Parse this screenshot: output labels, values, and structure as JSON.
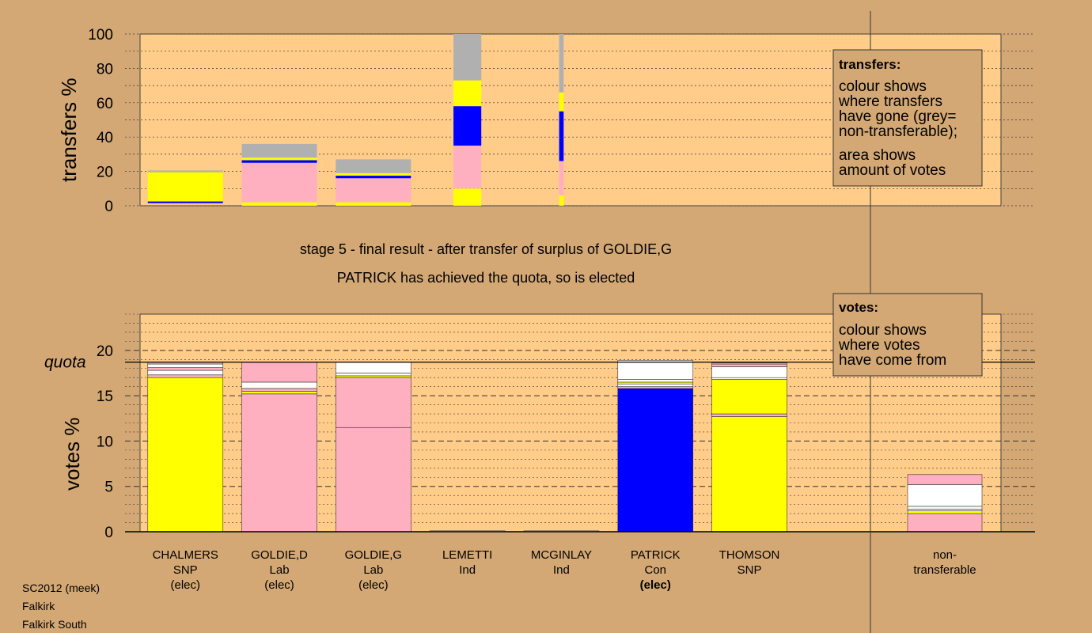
{
  "colors": {
    "background": "#D4A874",
    "panel": "#FFCC8A",
    "SNP": "#FFFF00",
    "Lab": "#FFB0C0",
    "Con": "#0000FF",
    "Ind": "#FFFFFF",
    "other": "#FFFFFF",
    "nontransferable": "#B0B0B0"
  },
  "captions": {
    "line1": "stage 5 - final result - after transfer of surplus of GOLDIE,G",
    "line2": "PATRICK has achieved the quota, so is elected"
  },
  "quota_label": "quota",
  "legend_transfers": {
    "head": "transfers:",
    "lines": [
      "colour shows",
      "where transfers",
      "have gone (grey=",
      "non-transferable);",
      "area shows",
      "amount of votes"
    ]
  },
  "legend_votes": {
    "head": "votes:",
    "lines": [
      "colour shows",
      "where votes",
      "have come from"
    ]
  },
  "footer": [
    "SC2012 (meek)",
    "Falkirk",
    "Falkirk South"
  ],
  "chart_data": [
    {
      "type": "bar",
      "name": "transfers",
      "ylabel": "transfers %",
      "ylim": [
        0,
        100
      ],
      "yticks": [
        0,
        20,
        40,
        60,
        80,
        100
      ],
      "grid": true,
      "bars": [
        {
          "width_rel": 1.0,
          "segments": [
            {
              "party": "Con",
              "from": 1.5,
              "to": 2.5
            },
            {
              "party": "SNP",
              "from": 2.5,
              "to": 19.5
            },
            {
              "party": "nontransferable",
              "from": 19.5,
              "to": 20.5
            }
          ]
        },
        {
          "width_rel": 1.0,
          "segments": [
            {
              "party": "SNP",
              "from": 0,
              "to": 2
            },
            {
              "party": "Lab",
              "from": 2,
              "to": 25
            },
            {
              "party": "Con",
              "from": 25,
              "to": 26.5
            },
            {
              "party": "SNP",
              "from": 26.5,
              "to": 28
            },
            {
              "party": "nontransferable",
              "from": 28,
              "to": 36
            }
          ]
        },
        {
          "width_rel": 1.0,
          "segments": [
            {
              "party": "SNP",
              "from": 0,
              "to": 2
            },
            {
              "party": "Lab",
              "from": 2,
              "to": 16
            },
            {
              "party": "Con",
              "from": 16,
              "to": 17.5
            },
            {
              "party": "SNP",
              "from": 17.5,
              "to": 19
            },
            {
              "party": "nontransferable",
              "from": 19,
              "to": 27
            }
          ]
        },
        {
          "width_rel": 0.37,
          "segments": [
            {
              "party": "SNP",
              "from": 0,
              "to": 10
            },
            {
              "party": "Lab",
              "from": 10,
              "to": 35
            },
            {
              "party": "Con",
              "from": 35,
              "to": 58
            },
            {
              "party": "SNP",
              "from": 58,
              "to": 73
            },
            {
              "party": "nontransferable",
              "from": 73,
              "to": 100
            }
          ]
        },
        {
          "width_rel": 0.06,
          "segments": [
            {
              "party": "SNP",
              "from": 0,
              "to": 6
            },
            {
              "party": "Lab",
              "from": 6,
              "to": 26
            },
            {
              "party": "Con",
              "from": 26,
              "to": 55
            },
            {
              "party": "SNP",
              "from": 55,
              "to": 66
            },
            {
              "party": "nontransferable",
              "from": 66,
              "to": 100
            }
          ]
        }
      ]
    },
    {
      "type": "bar",
      "name": "votes",
      "ylabel": "votes %",
      "ylim": [
        0,
        24
      ],
      "yticks": [
        0,
        5,
        10,
        15,
        20
      ],
      "quota": 18.7,
      "grid": true,
      "categories": [
        {
          "name": "CHALMERS",
          "party": "SNP",
          "status": "(elec)",
          "bold_status": false
        },
        {
          "name": "GOLDIE,D",
          "party": "Lab",
          "status": "(elec)",
          "bold_status": false
        },
        {
          "name": "GOLDIE,G",
          "party": "Lab",
          "status": "(elec)",
          "bold_status": false
        },
        {
          "name": "LEMETTI",
          "party": "Ind",
          "status": "",
          "bold_status": false
        },
        {
          "name": "MCGINLAY",
          "party": "Ind",
          "status": "",
          "bold_status": false
        },
        {
          "name": "PATRICK",
          "party": "Con",
          "status": "(elec)",
          "bold_status": true
        },
        {
          "name": "THOMSON",
          "party": "SNP",
          "status": "",
          "bold_status": false
        }
      ],
      "nontransferable_label": [
        "non-",
        "transferable"
      ],
      "bars": [
        {
          "segments": [
            {
              "party": "SNP",
              "from": 0,
              "to": 17.0
            },
            {
              "party": "Lab",
              "from": 17.0,
              "to": 17.3
            },
            {
              "party": "other",
              "from": 17.3,
              "to": 17.8
            },
            {
              "party": "Lab",
              "from": 17.8,
              "to": 18.1
            },
            {
              "party": "other",
              "from": 18.1,
              "to": 18.5
            },
            {
              "party": "Lab",
              "from": 18.5,
              "to": 18.7
            }
          ]
        },
        {
          "segments": [
            {
              "party": "Lab",
              "from": 0,
              "to": 15.2
            },
            {
              "party": "SNP",
              "from": 15.2,
              "to": 15.5
            },
            {
              "party": "Lab",
              "from": 15.5,
              "to": 15.8
            },
            {
              "party": "other",
              "from": 15.8,
              "to": 16.5
            },
            {
              "party": "Lab",
              "from": 16.5,
              "to": 18.7
            }
          ]
        },
        {
          "segments": [
            {
              "party": "Lab",
              "from": 0,
              "to": 11.5
            },
            {
              "party": "Lab",
              "from": 11.5,
              "to": 17.0
            },
            {
              "party": "SNP",
              "from": 17.0,
              "to": 17.2
            },
            {
              "party": "other",
              "from": 17.2,
              "to": 17.5
            },
            {
              "party": "other",
              "from": 17.5,
              "to": 18.7
            }
          ]
        },
        {
          "segments": [
            {
              "party": "Ind",
              "from": 0,
              "to": 0.1
            }
          ]
        },
        {
          "segments": [
            {
              "party": "Ind",
              "from": 0,
              "to": 0.1
            }
          ]
        },
        {
          "segments": [
            {
              "party": "Con",
              "from": 0,
              "to": 15.8
            },
            {
              "party": "Lab",
              "from": 15.8,
              "to": 16.0
            },
            {
              "party": "other",
              "from": 16.0,
              "to": 16.3
            },
            {
              "party": "SNP",
              "from": 16.3,
              "to": 16.5
            },
            {
              "party": "other",
              "from": 16.5,
              "to": 16.8
            },
            {
              "party": "other",
              "from": 16.8,
              "to": 18.9
            }
          ]
        },
        {
          "segments": [
            {
              "party": "SNP",
              "from": 0,
              "to": 12.7
            },
            {
              "party": "Lab",
              "from": 12.7,
              "to": 13.0
            },
            {
              "party": "SNP",
              "from": 13.0,
              "to": 16.8
            },
            {
              "party": "other",
              "from": 16.8,
              "to": 17.0
            },
            {
              "party": "other",
              "from": 17.0,
              "to": 18.2
            },
            {
              "party": "Lab",
              "from": 18.2,
              "to": 18.5
            },
            {
              "party": "other",
              "from": 18.5,
              "to": 18.6
            }
          ]
        }
      ],
      "nontransferable": {
        "segments": [
          {
            "party": "Lab",
            "from": 0,
            "to": 2.0
          },
          {
            "party": "SNP",
            "from": 2.0,
            "to": 2.3
          },
          {
            "party": "other",
            "from": 2.3,
            "to": 2.5
          },
          {
            "party": "other",
            "from": 2.5,
            "to": 2.8
          },
          {
            "party": "other",
            "from": 2.8,
            "to": 5.2
          },
          {
            "party": "Lab",
            "from": 5.2,
            "to": 6.3
          }
        ]
      }
    }
  ]
}
